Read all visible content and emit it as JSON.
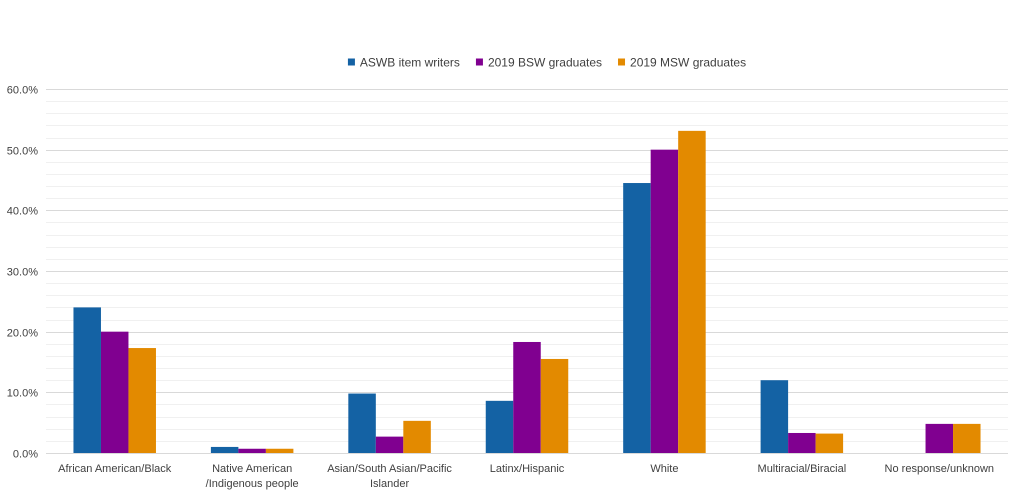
{
  "chart_data": {
    "type": "bar",
    "title": "",
    "xlabel": "",
    "ylabel": "",
    "ylim": [
      0,
      60
    ],
    "y_tick_step": 10,
    "y_minor_step": 2,
    "y_tick_format": "percent_1dp",
    "y_ticks": [
      "0.0%",
      "10.0%",
      "20.0%",
      "30.0%",
      "40.0%",
      "50.0%",
      "60.0%"
    ],
    "grid": true,
    "legend_position": "top-center",
    "categories": [
      [
        "African American/Black"
      ],
      [
        "Native American",
        "/Indigenous people"
      ],
      [
        "Asian/South Asian/Pacific",
        "Islander"
      ],
      [
        "Latinx/Hispanic"
      ],
      [
        "White"
      ],
      [
        "Multiracial/Biracial"
      ],
      [
        "No response/unknown"
      ]
    ],
    "series": [
      {
        "name": "ASWB item writers",
        "color": "#1462A4",
        "values": [
          24.0,
          1.0,
          9.8,
          8.6,
          44.5,
          12.0,
          0.0
        ]
      },
      {
        "name": "2019 BSW graduates",
        "color": "#800090",
        "values": [
          20.0,
          0.7,
          2.7,
          18.3,
          50.0,
          3.3,
          4.8
        ]
      },
      {
        "name": "2019 MSW graduates",
        "color": "#E38A00",
        "values": [
          17.3,
          0.7,
          5.3,
          15.5,
          53.1,
          3.2,
          4.8
        ]
      }
    ]
  }
}
